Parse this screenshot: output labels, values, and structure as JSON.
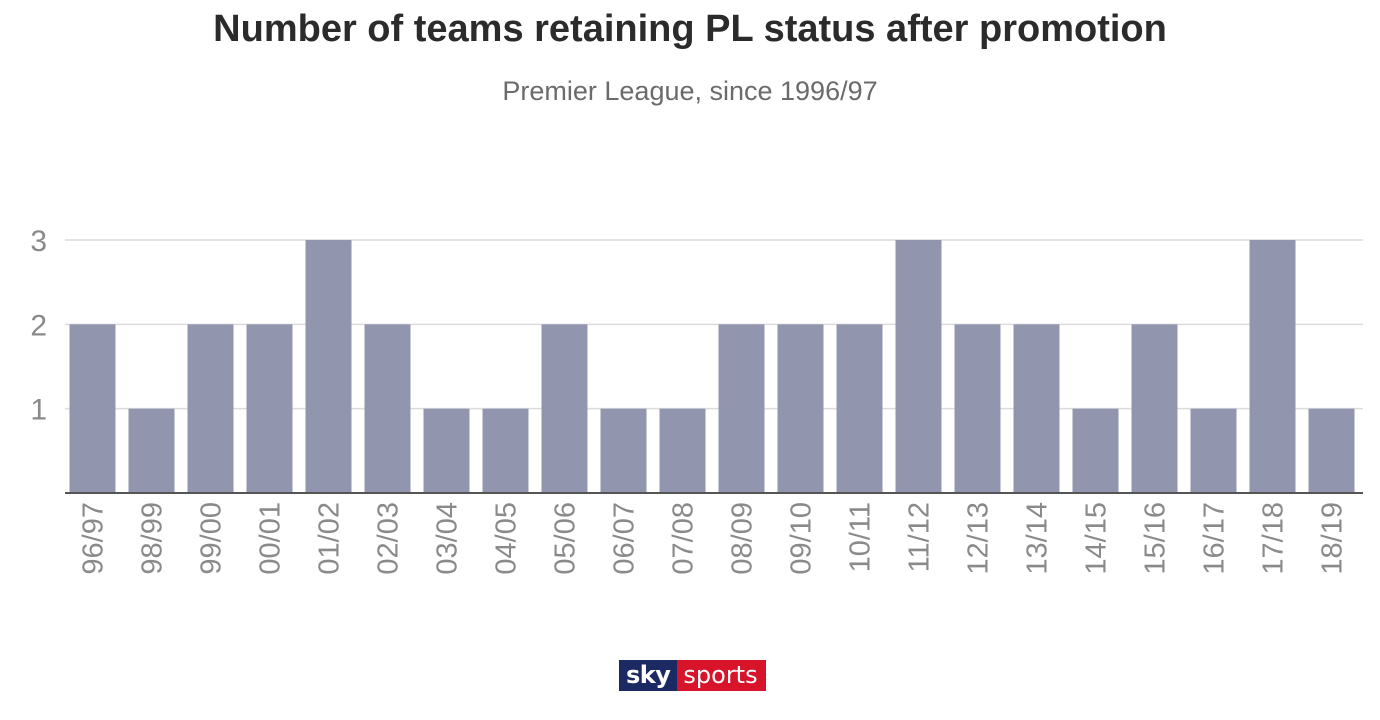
{
  "title": "Number of teams retaining PL status after promotion",
  "subtitle": "Premier League, since 1996/97",
  "logo": {
    "part1": "sky",
    "part2": "sports"
  },
  "colors": {
    "bar": "#9195ae",
    "grid": "#dcdcdc",
    "axis": "#555555",
    "tick_text": "#8a8a8a",
    "logo_navy": "#1c2a63",
    "logo_red": "#d8142b"
  },
  "chart_data": {
    "type": "bar",
    "title": "Number of teams retaining PL status after promotion",
    "subtitle": "Premier League, since 1996/97",
    "categories": [
      "96/97",
      "98/99",
      "99/00",
      "00/01",
      "01/02",
      "02/03",
      "03/04",
      "04/05",
      "05/06",
      "06/07",
      "07/08",
      "08/09",
      "09/10",
      "10/11",
      "11/12",
      "12/13",
      "13/14",
      "14/15",
      "15/16",
      "16/17",
      "17/18",
      "18/19"
    ],
    "values": [
      2,
      1,
      2,
      2,
      3,
      2,
      1,
      1,
      2,
      1,
      1,
      2,
      2,
      2,
      3,
      2,
      2,
      1,
      2,
      1,
      3,
      1
    ],
    "yticks": [
      1,
      2,
      3
    ],
    "ylim": [
      0,
      3
    ],
    "grid": true,
    "legend": "none"
  }
}
